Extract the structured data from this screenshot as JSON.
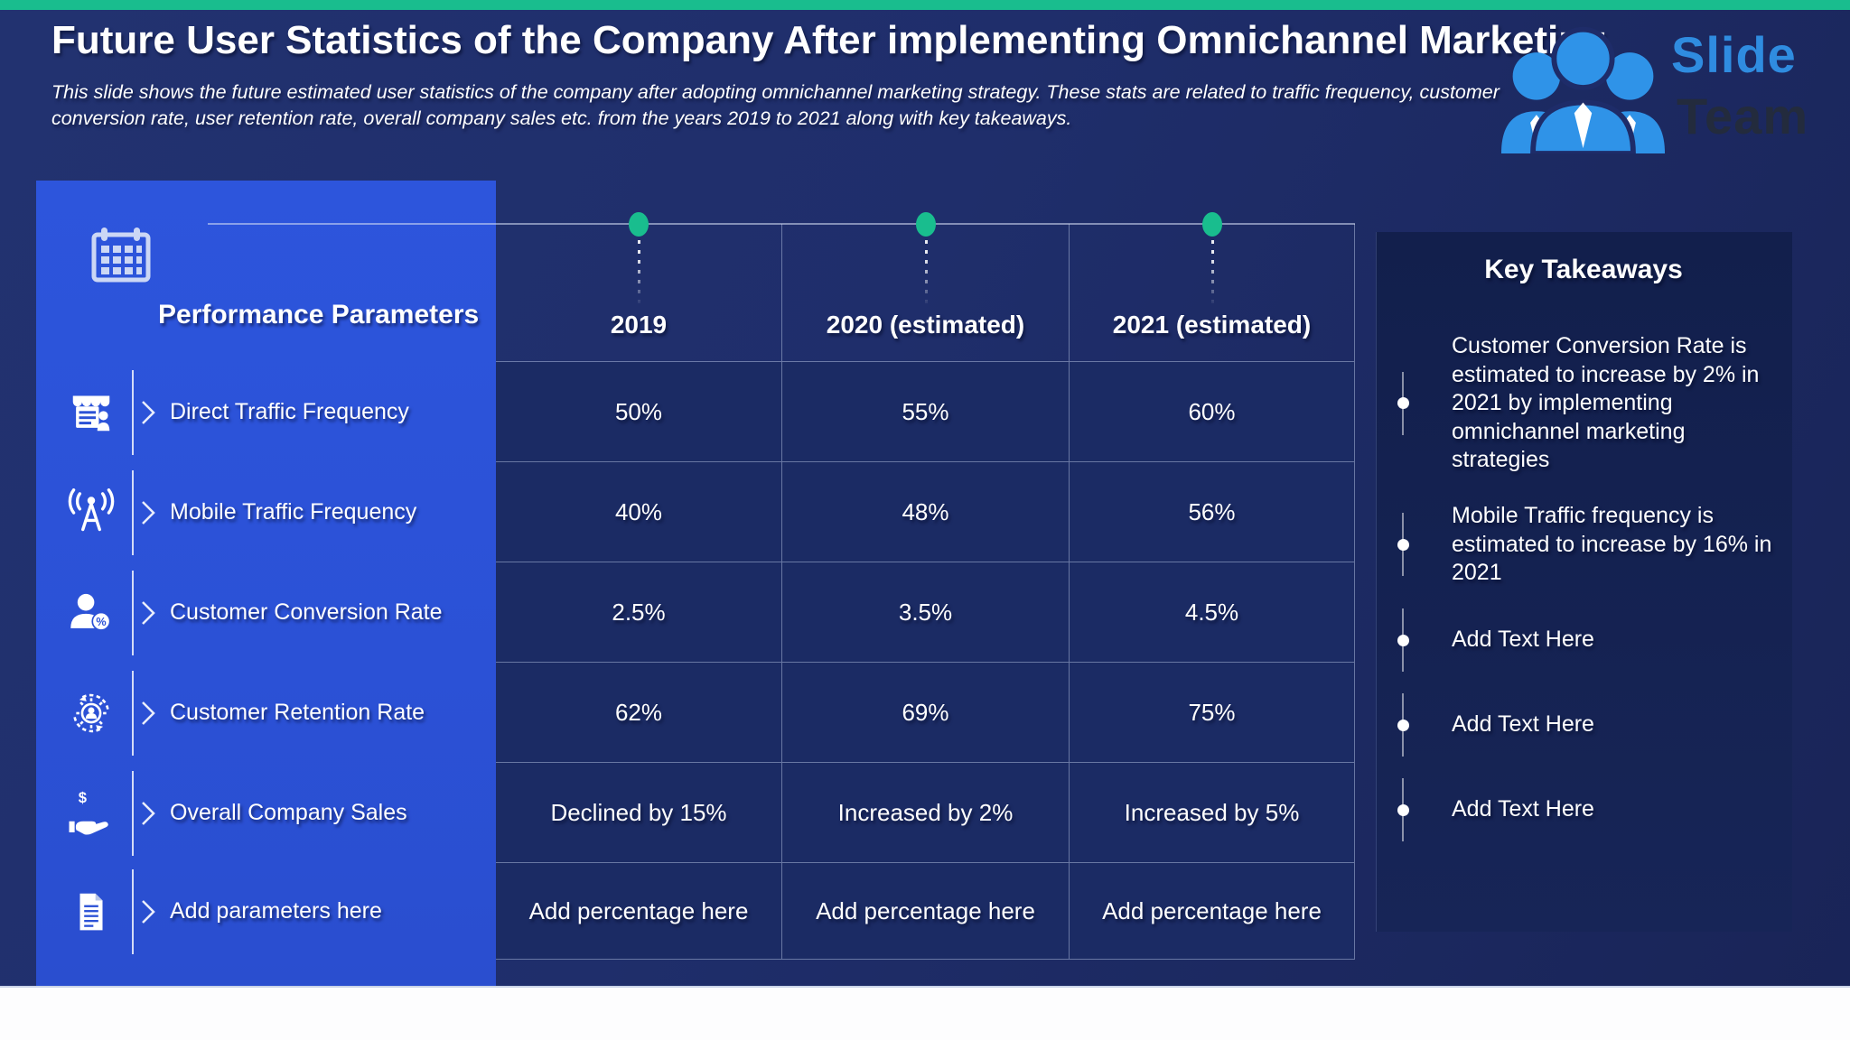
{
  "slide": {
    "title": "Future User Statistics of the Company After implementing Omnichannel Marketing",
    "subtitle_line1": "This slide shows the future estimated user statistics of the company after adopting omnichannel marketing strategy. These stats are related to traffic frequency, customer",
    "subtitle_line2": "conversion rate, user retention rate, overall company sales etc. from the years 2019 to 2021 along with key takeaways."
  },
  "logo": {
    "word1": "Slide",
    "word2": "Team"
  },
  "table": {
    "corner_header": "Performance Parameters",
    "columns": [
      "2019",
      "2020 (estimated)",
      "2021 (estimated)"
    ],
    "rows": [
      {
        "icon": "store-icon",
        "label": "Direct Traffic Frequency",
        "values": [
          "50%",
          "55%",
          "60%"
        ]
      },
      {
        "icon": "antenna-icon",
        "label": "Mobile Traffic Frequency",
        "values": [
          "40%",
          "48%",
          "56%"
        ]
      },
      {
        "icon": "customer-conversion-icon",
        "label": "Customer Conversion Rate",
        "values": [
          "2.5%",
          "3.5%",
          "4.5%"
        ]
      },
      {
        "icon": "customer-retention-icon",
        "label": "Customer Retention Rate",
        "values": [
          "62%",
          "69%",
          "75%"
        ]
      },
      {
        "icon": "hand-dollar-icon",
        "label": "Overall Company Sales",
        "values": [
          "Declined by 15%",
          "Increased by 2%",
          "Increased by 5%"
        ]
      },
      {
        "icon": "document-icon",
        "label": "Add parameters here",
        "values": [
          "Add percentage here",
          "Add percentage here",
          "Add percentage here"
        ]
      }
    ]
  },
  "takeaways": {
    "title": "Key Takeaways",
    "items": [
      "Customer Conversion Rate is estimated to increase by 2% in 2021 by implementing omnichannel marketing strategies",
      "Mobile Traffic frequency is estimated to increase by 16% in 2021",
      "Add Text Here",
      "Add Text Here",
      "Add Text Here"
    ]
  },
  "colors": {
    "accent_teal": "#19bd8e",
    "panel_blue": "#2b51d6",
    "cell_navy": "#1b2b64",
    "background_navy": "#1f2e6b",
    "takeaway_navy": "#121f4c",
    "logo_blue": "#2f8ce0",
    "logo_dark": "#232b3d"
  }
}
